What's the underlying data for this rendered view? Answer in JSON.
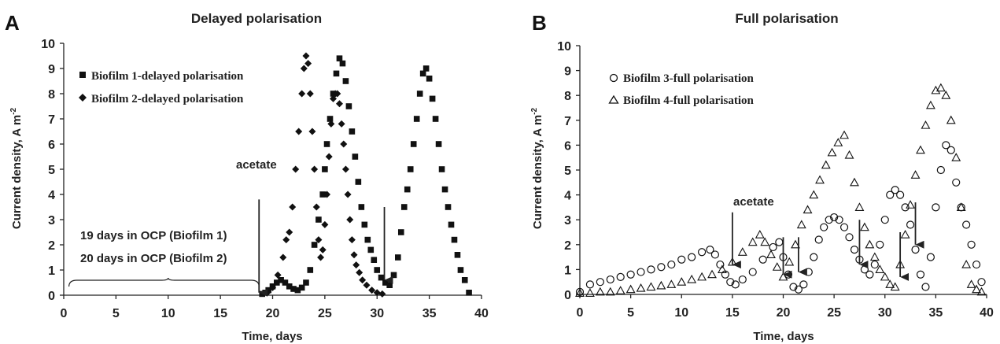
{
  "chart_data": [
    {
      "type": "scatter",
      "panel": "A",
      "title": "Delayed polarisation",
      "xlabel": "Time, days",
      "ylabel": "Current density, A m",
      "ylabel_sup": "-2",
      "xlim": [
        0,
        40
      ],
      "ylim": [
        0,
        10
      ],
      "xticks": [
        "0",
        "5",
        "10",
        "15",
        "20",
        "25",
        "30",
        "35",
        "40"
      ],
      "yticks": [
        "0",
        "1",
        "2",
        "3",
        "4",
        "5",
        "6",
        "7",
        "8",
        "9",
        "10"
      ],
      "legend_position": "top-left",
      "series": [
        {
          "name": "Biofilm 1-delayed polarisation",
          "marker": "square",
          "color": "#111111",
          "x": [
            19,
            19.3,
            19.6,
            20,
            20.4,
            20.8,
            21.2,
            21.6,
            22,
            22.4,
            22.8,
            23.2,
            23.6,
            24,
            24.4,
            24.8,
            25,
            25.2,
            25.5,
            25.8,
            26.1,
            26.4,
            26.7,
            27,
            27.3,
            27.6,
            27.9,
            28.2,
            28.5,
            28.8,
            29.1,
            29.4,
            29.7,
            30,
            30.4,
            30.8,
            31.2,
            31.6,
            32,
            32.3,
            32.6,
            32.9,
            33.2,
            33.5,
            33.8,
            34.1,
            34.4,
            34.7,
            35,
            35.3,
            35.6,
            35.9,
            36.2,
            36.5,
            36.8,
            37.1,
            37.4,
            37.7,
            38,
            38.4,
            38.8
          ],
          "y": [
            0.05,
            0.1,
            0.2,
            0.35,
            0.5,
            0.6,
            0.5,
            0.35,
            0.25,
            0.2,
            0.3,
            0.5,
            1.0,
            2.0,
            3.0,
            4.0,
            5.0,
            6.0,
            7.0,
            8.0,
            8.8,
            9.4,
            9.2,
            8.5,
            7.5,
            6.5,
            5.5,
            4.5,
            3.5,
            2.8,
            2.2,
            1.8,
            1.4,
            1.0,
            0.7,
            0.5,
            0.4,
            0.8,
            1.5,
            2.5,
            3.5,
            4.2,
            5.0,
            6.0,
            7.0,
            8.0,
            8.8,
            9.0,
            8.6,
            7.8,
            7.0,
            6.0,
            5.0,
            4.2,
            3.5,
            2.8,
            2.2,
            1.6,
            1.0,
            0.6,
            0.1
          ]
        },
        {
          "name": "Biofilm 2-delayed polarisation",
          "marker": "diamond",
          "color": "#111111",
          "x": [
            19.5,
            20,
            20.5,
            21,
            21.3,
            21.6,
            21.9,
            22.2,
            22.5,
            22.8,
            23,
            23.2,
            23.4,
            23.6,
            23.8,
            24,
            24.2,
            24.4,
            24.6,
            24.8,
            25,
            25.2,
            25.4,
            25.6,
            25.8,
            26,
            26.2,
            26.4,
            26.6,
            26.8,
            27,
            27.2,
            27.4,
            27.6,
            27.8,
            28,
            28.3,
            28.6,
            29,
            29.5,
            30,
            30.5
          ],
          "y": [
            0.1,
            0.3,
            0.8,
            1.5,
            2.2,
            2.5,
            3.5,
            5.0,
            6.5,
            8.0,
            9.0,
            9.5,
            9.2,
            8.0,
            6.5,
            5.0,
            3.5,
            2.2,
            1.5,
            1.8,
            2.8,
            4.0,
            5.5,
            6.8,
            7.8,
            8.0,
            8.0,
            7.6,
            6.8,
            6.0,
            5.0,
            4.0,
            3.0,
            2.2,
            1.6,
            1.2,
            0.9,
            0.6,
            0.4,
            0.2,
            0.1,
            0.05
          ]
        }
      ],
      "annotations": [
        {
          "text": "acetate",
          "arrow_x": 18.7,
          "arrow_from_y": 3.8,
          "arrow_to_y": 0.1
        },
        {
          "text": "",
          "arrow_x": 30.7,
          "arrow_from_y": 3.5,
          "arrow_to_y": 0.6
        },
        {
          "text": "19 days in OCP (Biofilm 1)"
        },
        {
          "text": "20 days in OCP (Biofilm 2)"
        }
      ],
      "brace": {
        "x_start": 0.5,
        "x_end": 18.7,
        "x_mid": 10
      }
    },
    {
      "type": "scatter",
      "panel": "B",
      "title": "Full polarisation",
      "xlabel": "Time, days",
      "ylabel": "Current density, A m",
      "ylabel_sup": "-2",
      "xlim": [
        0,
        40
      ],
      "ylim": [
        0,
        10
      ],
      "xticks": [
        "0",
        "5",
        "10",
        "15",
        "20",
        "25",
        "30",
        "35",
        "40"
      ],
      "yticks": [
        "0",
        "1",
        "2",
        "3",
        "4",
        "5",
        "6",
        "7",
        "8",
        "9",
        "10"
      ],
      "legend_position": "top-left",
      "series": [
        {
          "name": "Biofilm 3-full polarisation",
          "marker": "circle",
          "color": "#111111",
          "x": [
            0,
            1,
            2,
            3,
            4,
            5,
            6,
            7,
            8,
            9,
            10,
            11,
            12,
            12.8,
            13.3,
            13.8,
            14.3,
            14.8,
            15.3,
            16,
            17,
            18,
            19,
            19.6,
            20,
            20.5,
            21,
            21.5,
            22,
            22.5,
            23,
            23.5,
            24,
            24.5,
            25,
            25.5,
            26,
            26.5,
            27,
            27.5,
            28,
            28.5,
            29,
            29.5,
            30,
            30.5,
            31,
            31.5,
            32,
            32.5,
            33,
            33.5,
            34,
            34.5,
            35,
            35.5,
            36,
            36.5,
            37,
            37.5,
            38,
            38.5,
            39,
            39.5
          ],
          "y": [
            0.1,
            0.4,
            0.5,
            0.6,
            0.7,
            0.8,
            0.9,
            1.0,
            1.1,
            1.2,
            1.4,
            1.5,
            1.7,
            1.8,
            1.6,
            1.2,
            0.8,
            0.5,
            0.4,
            0.6,
            0.9,
            1.4,
            1.9,
            2.1,
            1.5,
            0.8,
            0.3,
            0.2,
            0.4,
            0.9,
            1.5,
            2.2,
            2.7,
            3.0,
            3.1,
            3.0,
            2.7,
            2.3,
            1.8,
            1.4,
            1.0,
            0.8,
            1.2,
            2.0,
            3.0,
            4.0,
            4.2,
            4.0,
            3.5,
            2.8,
            1.8,
            0.8,
            0.3,
            1.5,
            3.5,
            5.0,
            6.0,
            5.8,
            4.5,
            3.5,
            2.8,
            2.0,
            1.2,
            0.5
          ]
        },
        {
          "name": "Biofilm 4-full polarisation",
          "marker": "triangle",
          "color": "#111111",
          "x": [
            0,
            1,
            2,
            3,
            4,
            5,
            6,
            7,
            8,
            9,
            10,
            11,
            12,
            13,
            14,
            15,
            16,
            17,
            17.7,
            18.2,
            18.8,
            19.4,
            20,
            20.6,
            21.2,
            21.8,
            22.4,
            23,
            23.6,
            24.2,
            24.8,
            25.4,
            26,
            26.5,
            27,
            27.5,
            28,
            28.5,
            29,
            29.5,
            30,
            30.5,
            31,
            31.5,
            32,
            32.5,
            33,
            33.5,
            34,
            34.5,
            35,
            35.5,
            36,
            36.5,
            37,
            37.5,
            38,
            38.5,
            39,
            39.5
          ],
          "y": [
            0.05,
            0.05,
            0.1,
            0.1,
            0.15,
            0.2,
            0.25,
            0.3,
            0.35,
            0.4,
            0.5,
            0.6,
            0.7,
            0.8,
            1.0,
            1.3,
            1.7,
            2.1,
            2.4,
            2.1,
            1.6,
            1.1,
            0.7,
            1.3,
            2.0,
            2.8,
            3.4,
            4.0,
            4.6,
            5.2,
            5.7,
            6.1,
            6.4,
            5.6,
            4.5,
            3.5,
            2.7,
            2.0,
            1.5,
            1.0,
            0.7,
            0.4,
            0.3,
            1.2,
            2.4,
            3.6,
            4.8,
            5.8,
            6.8,
            7.6,
            8.2,
            8.3,
            8.0,
            7.0,
            5.5,
            3.5,
            1.2,
            0.4,
            0.2,
            0.1
          ]
        }
      ],
      "annotations": [
        {
          "text": "acetate",
          "arrow_x": 15,
          "arrow_from_y": 3.3,
          "arrow_to_y": 1.2
        },
        {
          "text": "",
          "arrow_x": 20,
          "arrow_from_y": 2.3,
          "arrow_to_y": 0.8
        },
        {
          "text": "",
          "arrow_x": 21.5,
          "arrow_from_y": 2.3,
          "arrow_to_y": 0.9
        },
        {
          "text": "",
          "arrow_x": 27.5,
          "arrow_from_y": 3.0,
          "arrow_to_y": 1.2
        },
        {
          "text": "",
          "arrow_x": 31.5,
          "arrow_from_y": 2.5,
          "arrow_to_y": 0.7
        },
        {
          "text": "",
          "arrow_x": 33,
          "arrow_from_y": 3.7,
          "arrow_to_y": 2.0
        }
      ]
    }
  ]
}
